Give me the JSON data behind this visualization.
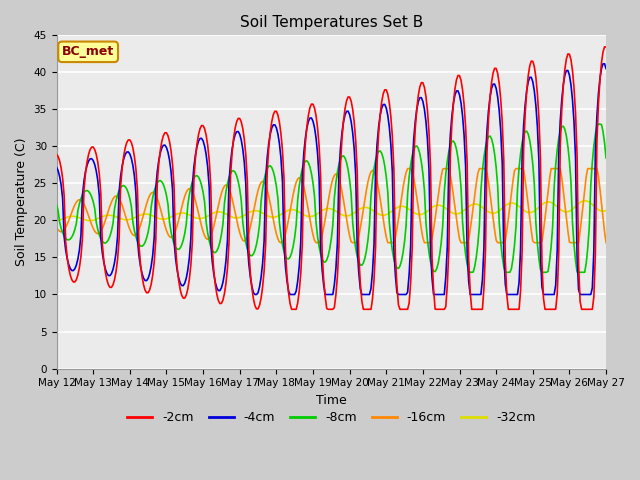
{
  "title": "Soil Temperatures Set B",
  "xlabel": "Time",
  "ylabel": "Soil Temperature (C)",
  "ylim": [
    0,
    45
  ],
  "yticks": [
    0,
    5,
    10,
    15,
    20,
    25,
    30,
    35,
    40,
    45
  ],
  "xtick_labels": [
    "May 12",
    "May 13",
    "May 14",
    "May 15",
    "May 16",
    "May 17",
    "May 18",
    "May 19",
    "May 20",
    "May 21",
    "May 22",
    "May 23",
    "May 24",
    "May 25",
    "May 26",
    "May 27"
  ],
  "series": {
    "-2cm": {
      "color": "#ff0000",
      "linewidth": 1.2
    },
    "-4cm": {
      "color": "#0000dd",
      "linewidth": 1.2
    },
    "-8cm": {
      "color": "#00cc00",
      "linewidth": 1.2
    },
    "-16cm": {
      "color": "#ff8800",
      "linewidth": 1.2
    },
    "-32cm": {
      "color": "#dddd00",
      "linewidth": 1.2
    }
  },
  "annotation_text": "BC_met",
  "annotation_bg": "#ffff99",
  "annotation_border": "#cc8800",
  "plot_bg": "#ebebeb",
  "fig_bg": "#cccccc",
  "title_fontsize": 11,
  "axis_fontsize": 9,
  "tick_fontsize": 7.5,
  "legend_fontsize": 9
}
